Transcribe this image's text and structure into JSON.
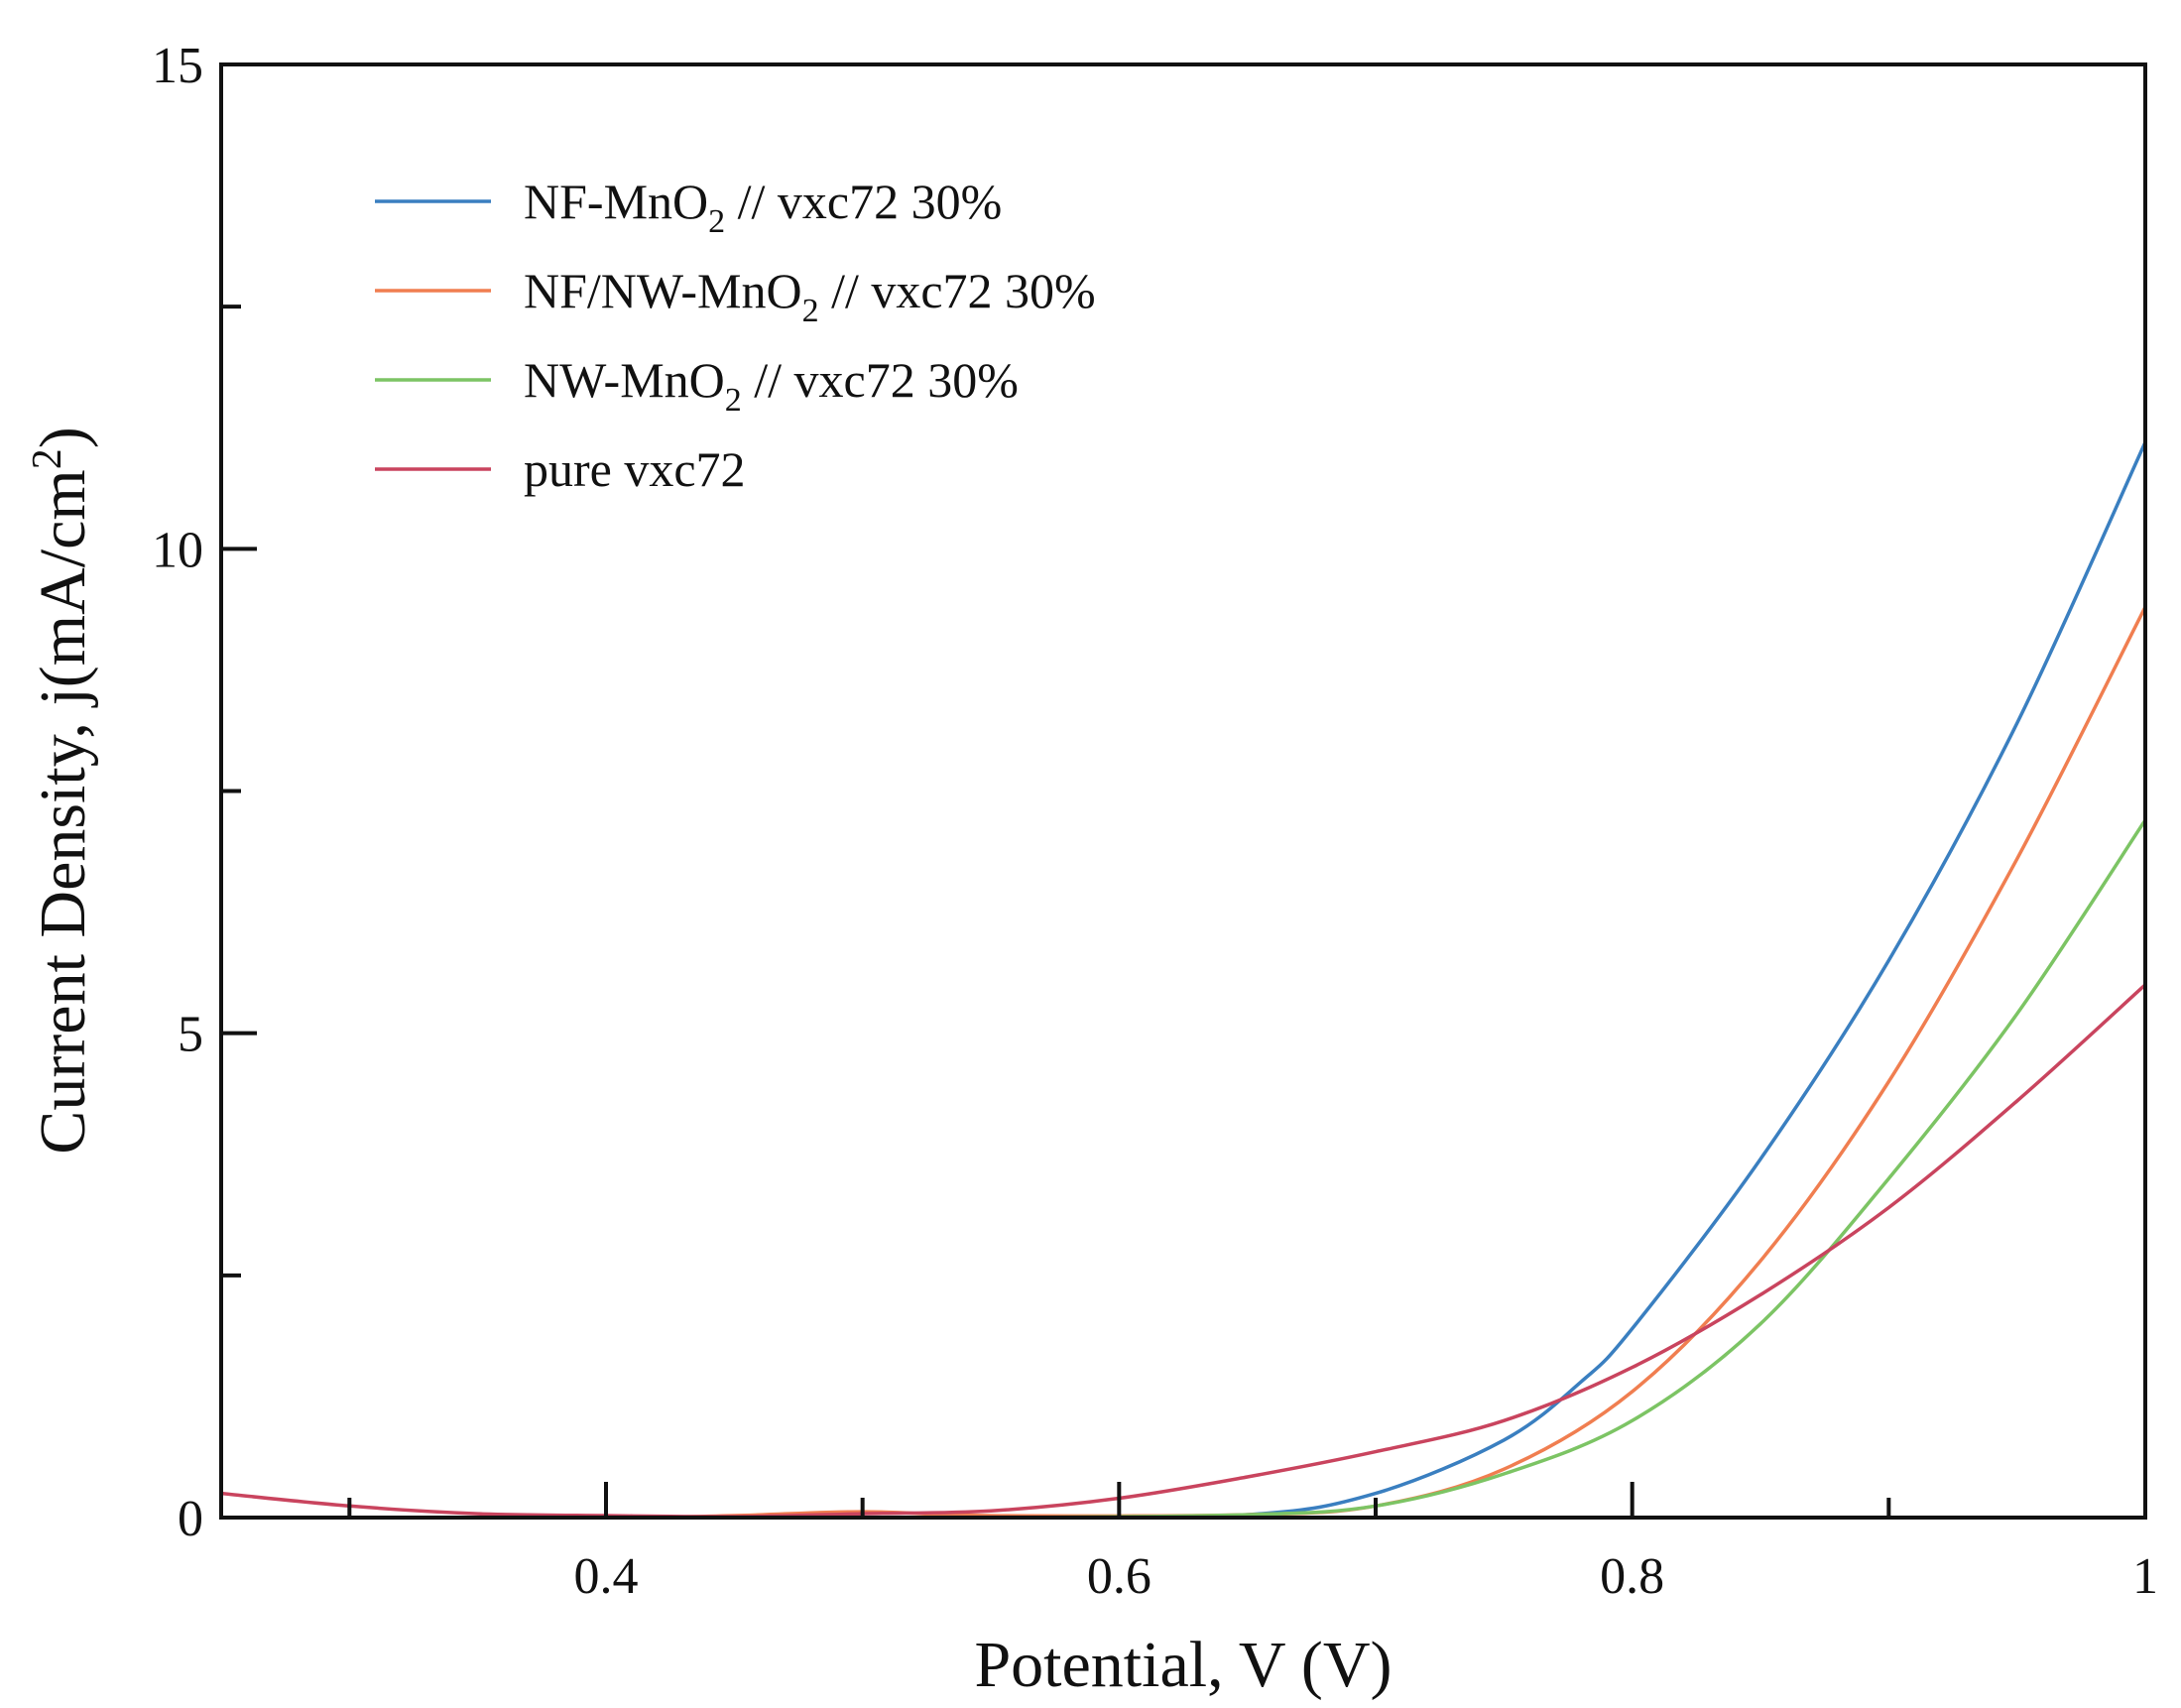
{
  "chart_data": {
    "type": "line",
    "title": "",
    "xlabel": "Potential, V (V)",
    "ylabel_main": "Current Density, j(mA/cm",
    "ylabel_sup": "2",
    "ylabel_close": ")",
    "xlim": [
      0.25,
      1.0
    ],
    "ylim": [
      0,
      15
    ],
    "x_ticks": [
      0.4,
      0.6,
      0.8,
      1.0
    ],
    "x_tick_labels": [
      "0.4",
      "0.6",
      "0.8",
      "1"
    ],
    "x_minor_ticks": [
      0.3,
      0.5,
      0.7,
      0.9
    ],
    "y_ticks": [
      0,
      5,
      10,
      15
    ],
    "y_tick_labels": [
      "0",
      "5",
      "10",
      "15"
    ],
    "y_minor_ticks": [
      2.5,
      7.5,
      12.5
    ],
    "grid": false,
    "legend_position": "top-left",
    "series": [
      {
        "name": "NF-MnO2 // vxc72 30%",
        "label_parts": [
          "NF-MnO",
          "2",
          " // vxc72 30%"
        ],
        "color": "#3a7fc0",
        "x": [
          0.25,
          0.4,
          0.55,
          0.65,
          0.7,
          0.75,
          0.78,
          0.8,
          0.85,
          0.9,
          0.95,
          1.0
        ],
        "y": [
          0.0,
          0.0,
          0.0,
          0.03,
          0.25,
          0.8,
          1.4,
          1.95,
          3.7,
          5.75,
          8.2,
          11.1
        ]
      },
      {
        "name": "NF/NW-MnO2 // vxc72 30%",
        "label_parts": [
          "NF/NW-MnO",
          "2",
          " // vxc72 30%"
        ],
        "color": "#f07e50",
        "x": [
          0.25,
          0.4,
          0.45,
          0.5,
          0.55,
          0.65,
          0.7,
          0.75,
          0.8,
          0.85,
          0.9,
          0.95,
          1.0
        ],
        "y": [
          0.0,
          0.0,
          0.02,
          0.06,
          0.02,
          0.03,
          0.12,
          0.5,
          1.3,
          2.65,
          4.5,
          6.8,
          9.4
        ]
      },
      {
        "name": "NW-MnO2 // vxc72 30%",
        "label_parts": [
          "NW-MnO",
          "2",
          " // vxc72 30%"
        ],
        "color": "#7cc464",
        "x": [
          0.25,
          0.4,
          0.55,
          0.65,
          0.7,
          0.75,
          0.8,
          0.85,
          0.9,
          0.95,
          1.0
        ],
        "y": [
          0.0,
          0.0,
          0.0,
          0.03,
          0.12,
          0.45,
          1.0,
          2.0,
          3.5,
          5.2,
          7.2
        ]
      },
      {
        "name": "pure vxc72",
        "label_parts": [
          "pure vxc72",
          "",
          ""
        ],
        "color": "#c9445e",
        "x": [
          0.25,
          0.3,
          0.35,
          0.4,
          0.45,
          0.5,
          0.55,
          0.6,
          0.65,
          0.7,
          0.75,
          0.8,
          0.85,
          0.9,
          0.95,
          1.0
        ],
        "y": [
          0.25,
          0.12,
          0.04,
          0.02,
          0.01,
          0.04,
          0.07,
          0.2,
          0.42,
          0.68,
          1.0,
          1.55,
          2.3,
          3.2,
          4.3,
          5.5
        ]
      }
    ]
  }
}
